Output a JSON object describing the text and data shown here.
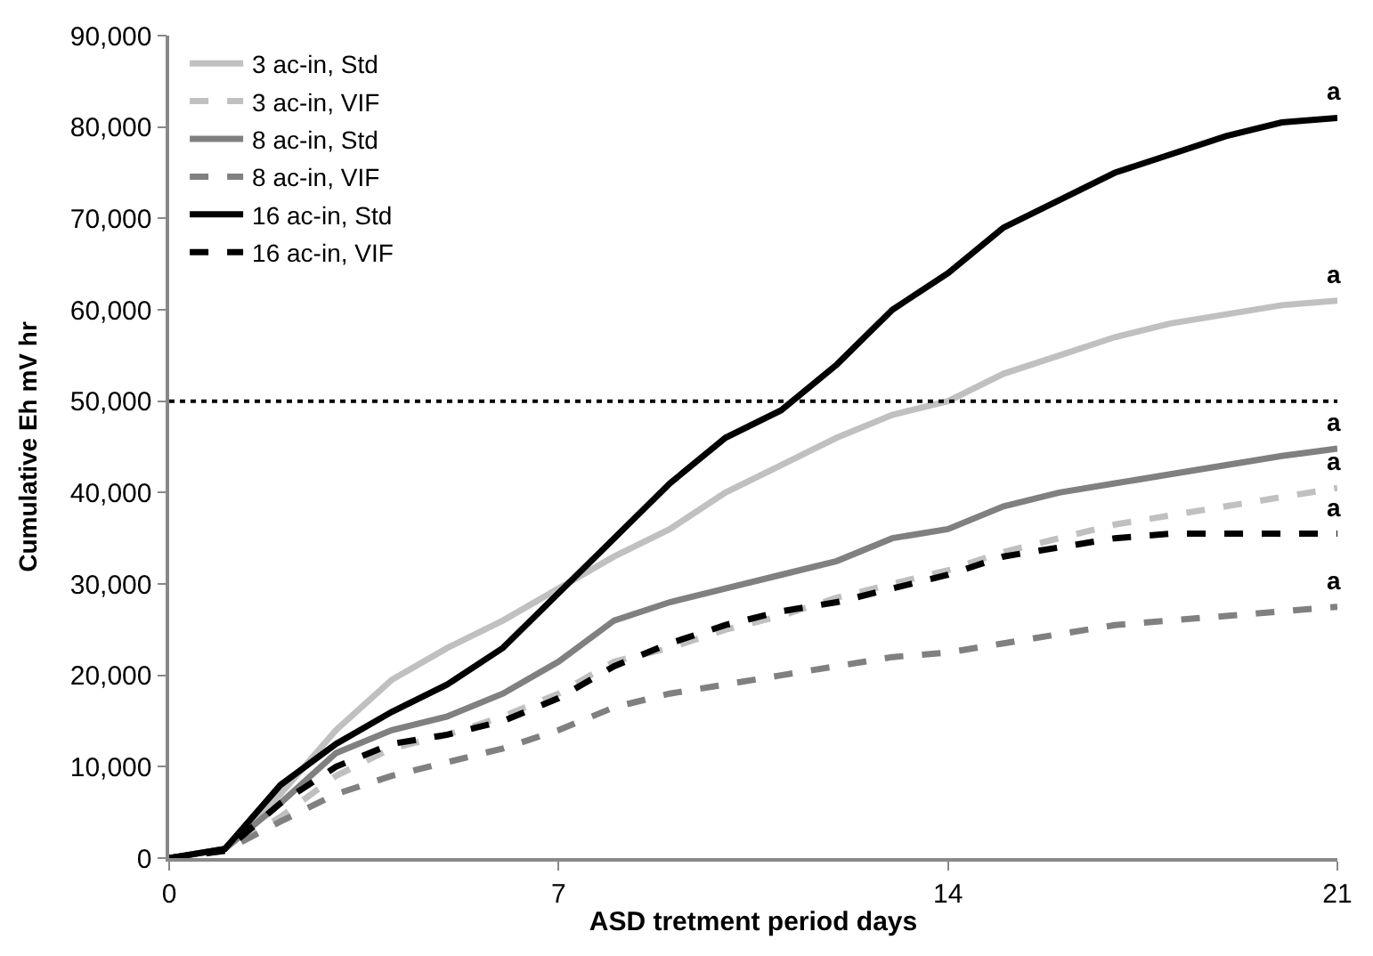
{
  "chart_data": {
    "type": "line",
    "xlabel": "ASD tretment period days",
    "ylabel": "Cumulative Eh mV hr",
    "x": [
      0,
      1,
      2,
      3,
      4,
      5,
      6,
      7,
      8,
      9,
      10,
      11,
      12,
      13,
      14,
      15,
      16,
      17,
      18,
      19,
      20,
      21
    ],
    "xlim": [
      0,
      21
    ],
    "xticks": [
      0,
      7,
      14,
      21
    ],
    "ylim": [
      0,
      90000
    ],
    "yticks": [
      {
        "value": 0,
        "label": "0"
      },
      {
        "value": 10000,
        "label": "10,000"
      },
      {
        "value": 20000,
        "label": "20,000"
      },
      {
        "value": 30000,
        "label": "30,000"
      },
      {
        "value": 40000,
        "label": "40,000"
      },
      {
        "value": 50000,
        "label": "50,000"
      },
      {
        "value": 60000,
        "label": "60,000"
      },
      {
        "value": 70000,
        "label": "70,000"
      },
      {
        "value": 80000,
        "label": "80,000"
      },
      {
        "value": 90000,
        "label": "90,000"
      }
    ],
    "legend": "top left",
    "marker": "none",
    "series": [
      {
        "name": "3 ac-in, Std",
        "color": "#c0c0c0",
        "line_style": "solid",
        "values": [
          0,
          1000,
          7000,
          14000,
          19500,
          23000,
          26000,
          29500,
          33000,
          36000,
          40000,
          43000,
          46000,
          48500,
          50000,
          53000,
          55000,
          57000,
          58500,
          59500,
          60500,
          61000
        ]
      },
      {
        "name": "3 ac-in, VIF",
        "color": "#c0c0c0",
        "line_style": "dashed",
        "values": [
          0,
          800,
          4500,
          9000,
          12000,
          13500,
          15500,
          18000,
          21500,
          23000,
          25000,
          26500,
          28500,
          30000,
          31500,
          33500,
          35000,
          36500,
          37500,
          38500,
          39500,
          40500
        ]
      },
      {
        "name": "8 ac-in, Std",
        "color": "#808080",
        "line_style": "solid",
        "values": [
          0,
          1000,
          6000,
          11500,
          14000,
          15500,
          18000,
          21500,
          26000,
          28000,
          29500,
          31000,
          32500,
          35000,
          36000,
          38500,
          40000,
          41000,
          42000,
          43000,
          44000,
          44800
        ]
      },
      {
        "name": "8 ac-in, VIF",
        "color": "#808080",
        "line_style": "dashed",
        "values": [
          0,
          800,
          4000,
          7000,
          9000,
          10500,
          12000,
          14000,
          16500,
          18000,
          19000,
          20000,
          21000,
          22000,
          22500,
          23500,
          24500,
          25500,
          26000,
          26500,
          27000,
          27500
        ]
      },
      {
        "name": "16 ac-in, Std",
        "color": "#000000",
        "line_style": "solid",
        "values": [
          0,
          1000,
          8000,
          12500,
          16000,
          19000,
          23000,
          29000,
          35000,
          41000,
          46000,
          49000,
          54000,
          60000,
          64000,
          69000,
          72000,
          75000,
          77000,
          79000,
          80500,
          81000
        ]
      },
      {
        "name": "16 ac-in, VIF",
        "color": "#000000",
        "line_style": "dashed",
        "values": [
          0,
          800,
          6000,
          10000,
          12500,
          13500,
          15000,
          17500,
          21000,
          23500,
          25500,
          27000,
          28000,
          29500,
          31000,
          33000,
          34000,
          35000,
          35500,
          35500,
          35500,
          35500
        ]
      }
    ],
    "ref_lines": [
      {
        "axis": "y",
        "value": 50000,
        "color": "#000000",
        "line_style": "dotted"
      }
    ],
    "annotations": [
      {
        "text": "a",
        "y": 81000
      },
      {
        "text": "a",
        "y": 61000
      },
      {
        "text": "a",
        "y": 44800
      },
      {
        "text": "a",
        "y": 40500
      },
      {
        "text": "a",
        "y": 35500
      },
      {
        "text": "a",
        "y": 27500
      }
    ]
  }
}
